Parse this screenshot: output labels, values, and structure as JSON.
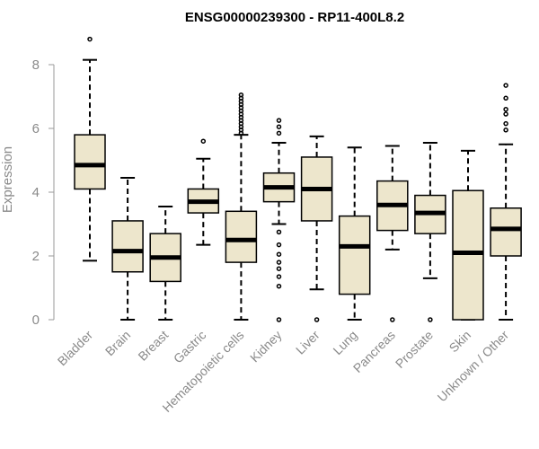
{
  "chart_data": {
    "type": "box",
    "title": "ENSG00000239300 - RP11-400L8.2",
    "xlabel": "",
    "ylabel": "Expression",
    "ylim": [
      0,
      8.6
    ],
    "yticks": [
      0,
      2,
      4,
      6,
      8
    ],
    "grid": false,
    "box_color": "#ede6cc",
    "categories": [
      "Bladder",
      "Brain",
      "Breast",
      "Gastric",
      "Hematopoietic cells",
      "Kidney",
      "Liver",
      "Lung",
      "Pancreas",
      "Prostate",
      "Skin",
      "Unknown / Other"
    ],
    "boxes": [
      {
        "category": "Bladder",
        "whisker_low": 1.85,
        "q1": 4.1,
        "median": 4.85,
        "q3": 5.8,
        "whisker_high": 8.15,
        "outliers": [
          8.8
        ]
      },
      {
        "category": "Brain",
        "whisker_low": 0.0,
        "q1": 1.5,
        "median": 2.15,
        "q3": 3.1,
        "whisker_high": 4.45,
        "outliers": []
      },
      {
        "category": "Breast",
        "whisker_low": 0.0,
        "q1": 1.2,
        "median": 1.95,
        "q3": 2.7,
        "whisker_high": 3.55,
        "outliers": []
      },
      {
        "category": "Gastric",
        "whisker_low": 2.35,
        "q1": 3.35,
        "median": 3.7,
        "q3": 4.1,
        "whisker_high": 5.05,
        "outliers": [
          5.6
        ]
      },
      {
        "category": "Hematopoietic cells",
        "whisker_low": 0.0,
        "q1": 1.8,
        "median": 2.5,
        "q3": 3.4,
        "whisker_high": 5.8,
        "outliers": [
          5.85,
          5.95,
          6.05,
          6.15,
          6.25,
          6.35,
          6.45,
          6.55,
          6.65,
          6.75,
          6.85,
          6.95,
          7.05
        ]
      },
      {
        "category": "Kidney",
        "whisker_low": 3.0,
        "q1": 3.7,
        "median": 4.15,
        "q3": 4.6,
        "whisker_high": 5.55,
        "outliers": [
          0.0,
          1.05,
          1.35,
          1.6,
          1.8,
          2.05,
          2.35,
          2.75,
          5.85,
          6.05,
          6.25
        ]
      },
      {
        "category": "Liver",
        "whisker_low": 0.95,
        "q1": 3.1,
        "median": 4.1,
        "q3": 5.1,
        "whisker_high": 5.75,
        "outliers": [
          0.0
        ]
      },
      {
        "category": "Lung",
        "whisker_low": 0.0,
        "q1": 0.8,
        "median": 2.3,
        "q3": 3.25,
        "whisker_high": 5.4,
        "outliers": []
      },
      {
        "category": "Pancreas",
        "whisker_low": 2.2,
        "q1": 2.8,
        "median": 3.6,
        "q3": 4.35,
        "whisker_high": 5.45,
        "outliers": [
          0.0
        ]
      },
      {
        "category": "Prostate",
        "whisker_low": 1.3,
        "q1": 2.7,
        "median": 3.35,
        "q3": 3.9,
        "whisker_high": 5.55,
        "outliers": [
          0.0
        ]
      },
      {
        "category": "Skin",
        "whisker_low": 0.0,
        "q1": 0.0,
        "median": 2.1,
        "q3": 4.05,
        "whisker_high": 5.3,
        "outliers": []
      },
      {
        "category": "Unknown / Other",
        "whisker_low": 0.0,
        "q1": 2.0,
        "median": 2.85,
        "q3": 3.5,
        "whisker_high": 5.5,
        "outliers": [
          5.95,
          6.15,
          6.45,
          6.6,
          6.95,
          7.35
        ]
      }
    ]
  }
}
